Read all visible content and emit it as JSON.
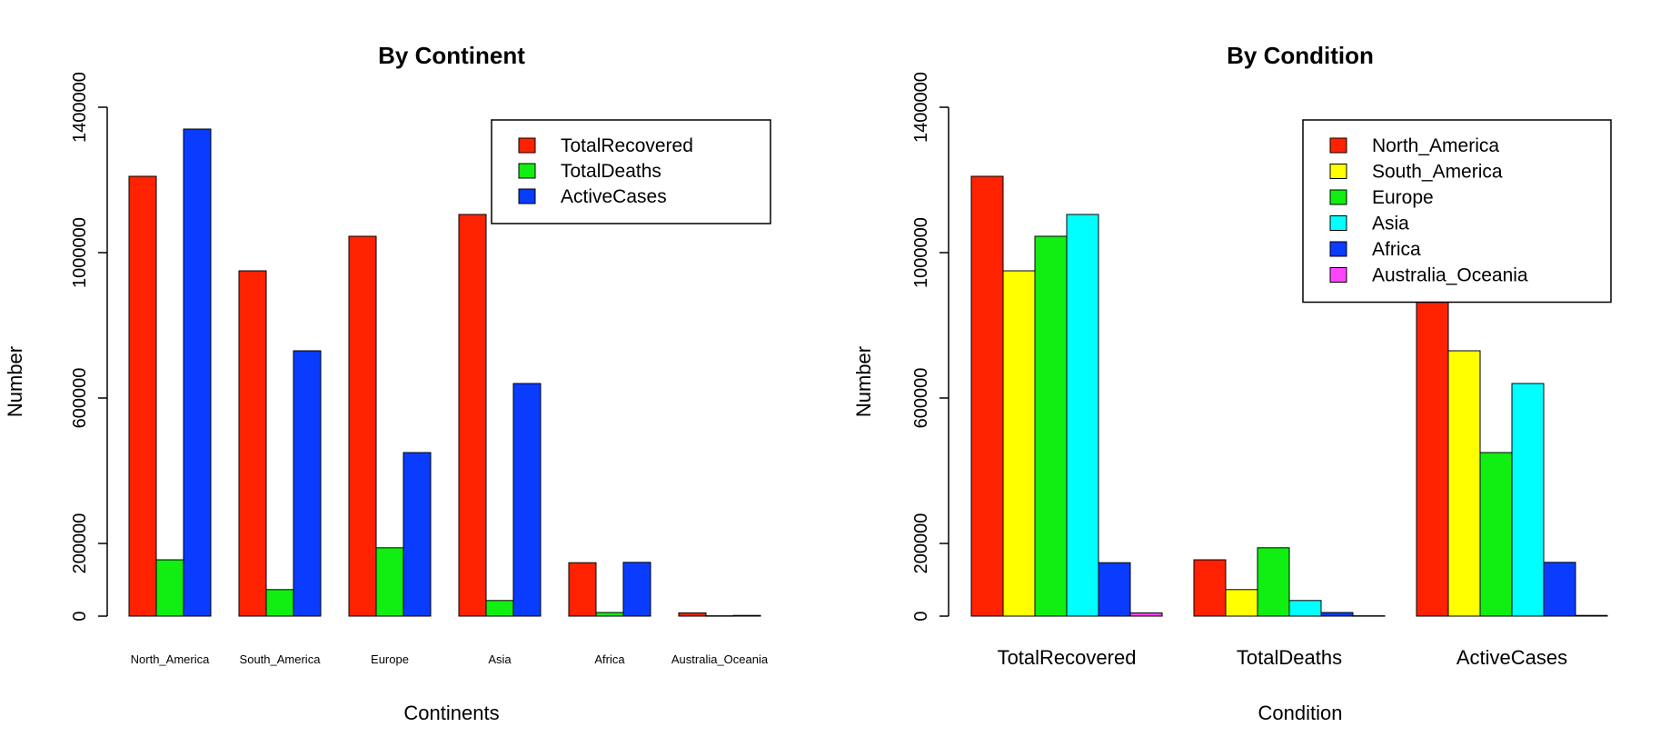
{
  "colors": {
    "red": "#ff2200",
    "green": "#11ee11",
    "blue": "#0a3cff",
    "yellow": "#ffff00",
    "cyan": "#00ffff",
    "magenta": "#ff44ff"
  },
  "chart_data": [
    {
      "type": "bar",
      "title": "By Continent",
      "xlabel": "Continents",
      "ylabel": "Number",
      "ylim": [
        0,
        1400000
      ],
      "yticks": [
        "0",
        "200000",
        "600000",
        "1000000",
        "1400000"
      ],
      "ytick_values": [
        0,
        200000,
        600000,
        1000000,
        1400000
      ],
      "categories": [
        "North_America",
        "South_America",
        "Europe",
        "Asia",
        "Africa",
        "Australia_Oceania"
      ],
      "legend_position": "top-right",
      "series": [
        {
          "name": "TotalRecovered",
          "color": "#ff2200",
          "values": [
            1210000,
            950000,
            1045000,
            1105000,
            147000,
            9000
          ]
        },
        {
          "name": "TotalDeaths",
          "color": "#11ee11",
          "values": [
            155000,
            73000,
            188000,
            43000,
            10000,
            1000
          ]
        },
        {
          "name": "ActiveCases",
          "color": "#0a3cff",
          "values": [
            1340000,
            730000,
            450000,
            640000,
            148000,
            2000
          ]
        }
      ]
    },
    {
      "type": "bar",
      "title": "By Condition",
      "xlabel": "Condition",
      "ylabel": "Number",
      "ylim": [
        0,
        1400000
      ],
      "yticks": [
        "0",
        "200000",
        "600000",
        "1000000",
        "1400000"
      ],
      "ytick_values": [
        0,
        200000,
        600000,
        1000000,
        1400000
      ],
      "categories": [
        "TotalRecovered",
        "TotalDeaths",
        "ActiveCases"
      ],
      "legend_position": "top-right",
      "series": [
        {
          "name": "North_America",
          "color": "#ff2200",
          "values": [
            1210000,
            155000,
            1340000
          ]
        },
        {
          "name": "South_America",
          "color": "#ffff00",
          "values": [
            950000,
            73000,
            730000
          ]
        },
        {
          "name": "Europe",
          "color": "#11ee11",
          "values": [
            1045000,
            188000,
            450000
          ]
        },
        {
          "name": "Asia",
          "color": "#00ffff",
          "values": [
            1105000,
            43000,
            640000
          ]
        },
        {
          "name": "Africa",
          "color": "#0a3cff",
          "values": [
            147000,
            10000,
            148000
          ]
        },
        {
          "name": "Australia_Oceania",
          "color": "#ff44ff",
          "values": [
            9000,
            1000,
            2000
          ]
        }
      ]
    }
  ]
}
